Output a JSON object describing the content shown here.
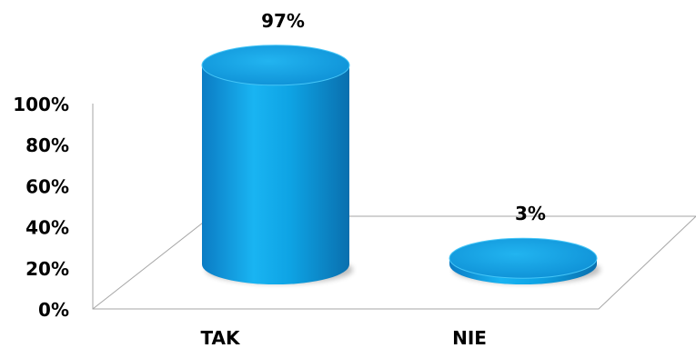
{
  "chart_data": {
    "type": "bar",
    "style": "3d-cylinder",
    "categories": [
      "TAK",
      "NIE"
    ],
    "values": [
      97,
      3
    ],
    "data_labels": [
      "97%",
      "3%"
    ],
    "y_ticks": [
      "0%",
      "20%",
      "40%",
      "60%",
      "80%",
      "100%"
    ],
    "ylim": [
      0,
      100
    ],
    "grid": false,
    "legend": "none",
    "colors": {
      "bar": "#0ea5e9",
      "bar_dark": "#0b6fb0",
      "bar_light": "#4fd2ff",
      "top": "#1aa8ec",
      "floor_line": "#a6a6a6"
    }
  }
}
